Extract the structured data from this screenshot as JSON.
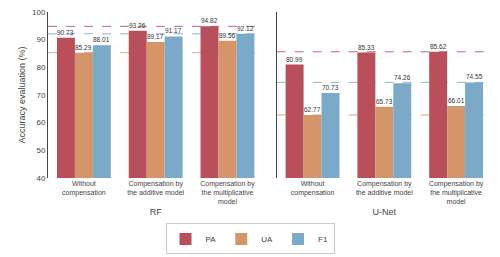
{
  "chart_data": [
    {
      "type": "bar",
      "xlabel": "RF",
      "ylabel": "Accuracy evaluation (%)",
      "categories": [
        "Without\ncompensation",
        "Compensation by\nthe additive model",
        "Compensation by\nthe multiplicative\nmodel"
      ],
      "series": [
        {
          "name": "PA",
          "color": "#b94f5a",
          "values": [
            90.73,
            93.26,
            94.82
          ]
        },
        {
          "name": "UA",
          "color": "#d4956a",
          "values": [
            85.29,
            89.17,
            89.56
          ]
        },
        {
          "name": "F1",
          "color": "#7aaac8",
          "values": [
            88.01,
            91.17,
            92.12
          ]
        }
      ],
      "reference_lines": [
        {
          "value": 94.82,
          "color": "#b94f5a",
          "line_style": "dashed"
        },
        {
          "value": 85.29,
          "color": "#d4956a",
          "line_style": "dashed"
        },
        {
          "value": 92.12,
          "color": "#7aaac8",
          "line_style": "dashed"
        }
      ],
      "ylim": [
        40,
        100
      ],
      "yticks": [
        40,
        50,
        60,
        70,
        80,
        90,
        100
      ],
      "grid": false,
      "data_labels": true,
      "legend": "bottom"
    },
    {
      "type": "bar",
      "xlabel": "U-Net",
      "categories": [
        "Without\ncompensation",
        "Compensation by\nthe additive model",
        "Compensation by\nthe multiplicative\nmodel"
      ],
      "series": [
        {
          "name": "PA",
          "color": "#b94f5a",
          "values": [
            80.99,
            85.33,
            85.62
          ]
        },
        {
          "name": "UA",
          "color": "#d4956a",
          "values": [
            62.77,
            65.73,
            66.01
          ]
        },
        {
          "name": "F1",
          "color": "#7aaac8",
          "values": [
            70.73,
            74.26,
            74.55
          ]
        }
      ],
      "reference_lines": [
        {
          "value": 85.62,
          "color": "#b94f5a",
          "line_style": "dashed"
        },
        {
          "value": 62.77,
          "color": "#d4956a",
          "line_style": "dashed"
        },
        {
          "value": 74.55,
          "color": "#7aaac8",
          "line_style": "dashed"
        }
      ],
      "ylim": [
        40,
        100
      ],
      "yticks": [
        40,
        50,
        60,
        70,
        80,
        90,
        100
      ],
      "grid": false,
      "data_labels": true,
      "tick_labels": "x"
    }
  ]
}
